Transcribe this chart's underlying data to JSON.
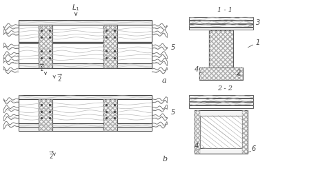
{
  "bg_color": "#ffffff",
  "lc": "#666666",
  "dc": "#444444",
  "gc": "#aaaaaa",
  "fig_width": 4.74,
  "fig_height": 2.55,
  "dpi": 100
}
